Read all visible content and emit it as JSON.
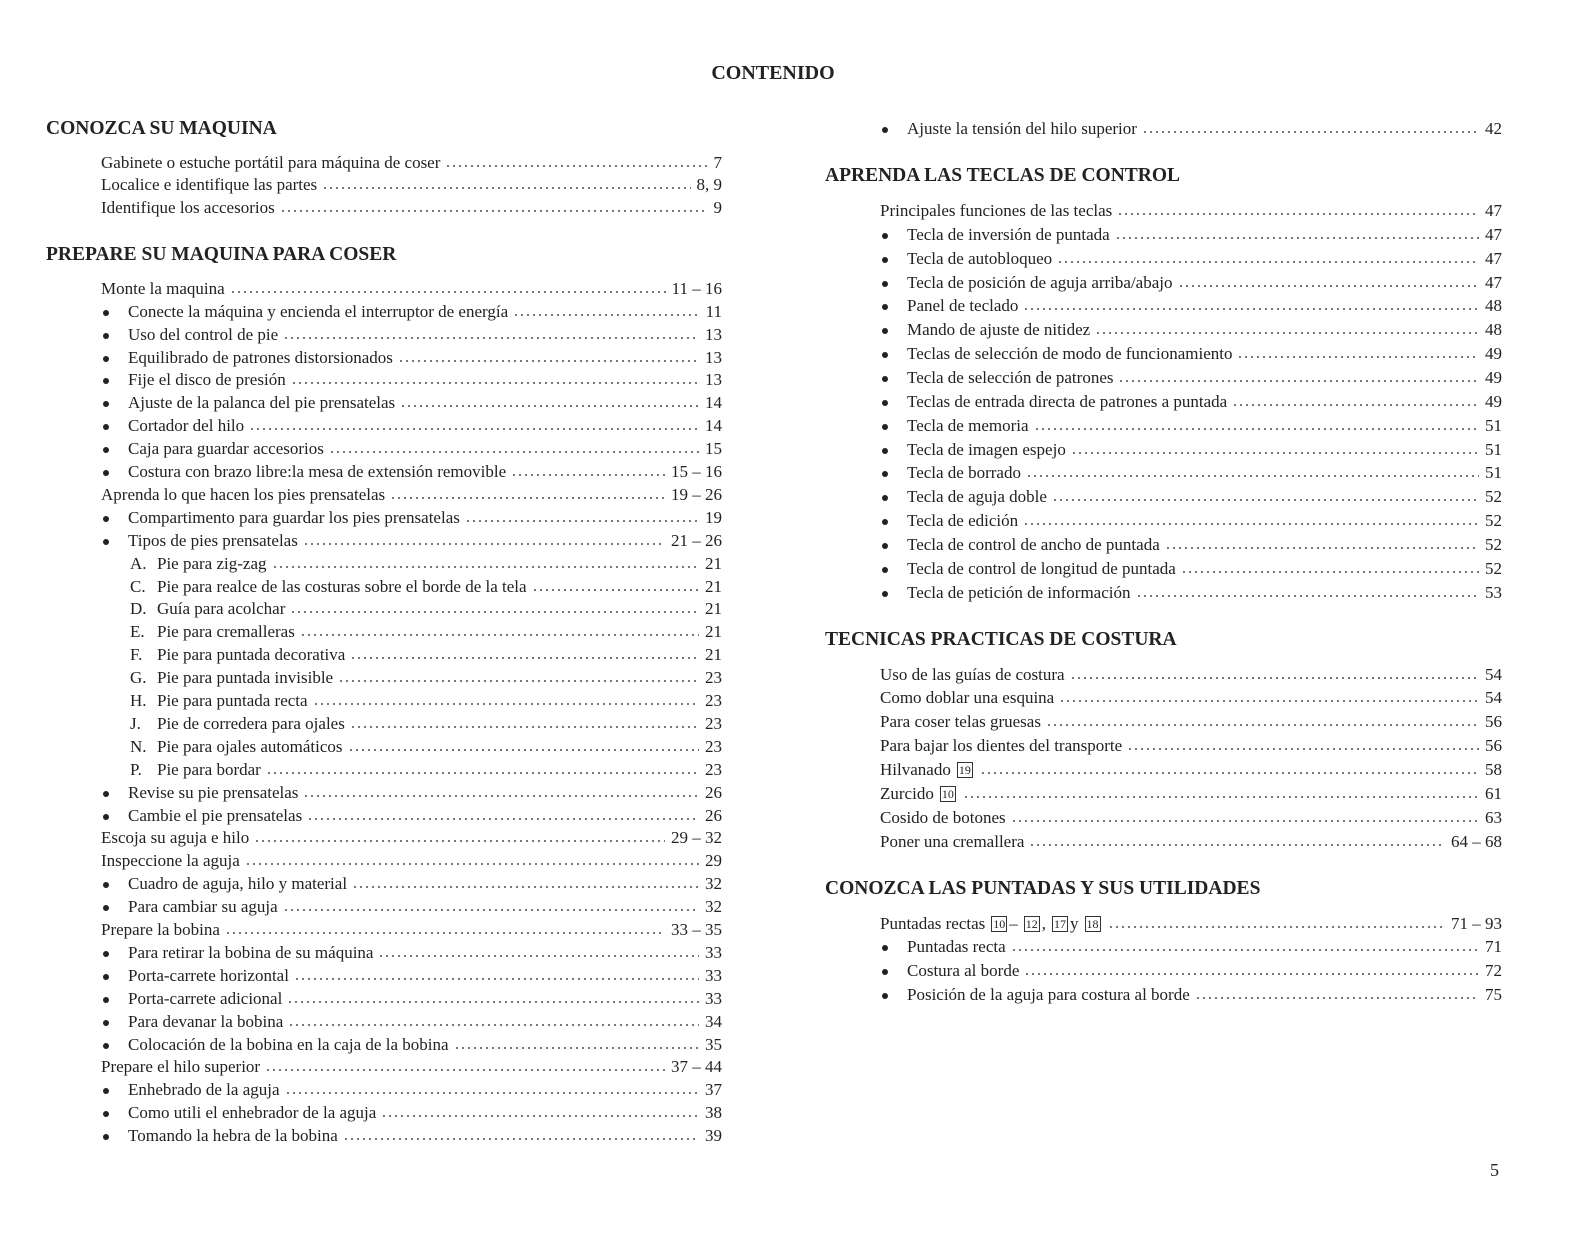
{
  "title": "CONTENIDO",
  "page_number": "5",
  "columns": [
    [
      {
        "heading": "CONOZCA SU MAQUINA",
        "entries": [
          {
            "text": [
              "Gabinete o estuche portátil para máquina de coser"
            ],
            "page": "7"
          },
          {
            "text": [
              "Localice e identifique las partes"
            ],
            "page": "8, 9"
          },
          {
            "text": [
              "Identifique los accesorios"
            ],
            "page": "9"
          }
        ]
      },
      {
        "heading": "PREPARE SU MAQUINA PARA COSER",
        "entries": [
          {
            "text": [
              "Monte la maquina"
            ],
            "page": "11 – 16"
          },
          {
            "bullet": true,
            "text": [
              "Conecte la máquina y encienda el interruptor de energía"
            ],
            "page": "11"
          },
          {
            "bullet": true,
            "text": [
              "Uso del control de pie"
            ],
            "page": "13"
          },
          {
            "bullet": true,
            "text": [
              "Equilibrado de patrones distorsionados"
            ],
            "page": "13"
          },
          {
            "bullet": true,
            "text": [
              "Fije el disco de presión"
            ],
            "page": "13"
          },
          {
            "bullet": true,
            "text": [
              "Ajuste de la palanca del pie prensatelas"
            ],
            "page": "14"
          },
          {
            "bullet": true,
            "text": [
              "Cortador del hilo"
            ],
            "page": "14"
          },
          {
            "bullet": true,
            "text": [
              "Caja para guardar accesorios"
            ],
            "page": "15"
          },
          {
            "bullet": true,
            "text": [
              "Costura con brazo libre:la mesa de extensión removible"
            ],
            "page": "15 – 16"
          },
          {
            "text": [
              "Aprenda lo que hacen los pies prensatelas"
            ],
            "page": "19 – 26"
          },
          {
            "bullet": true,
            "text": [
              "Compartimento para guardar los pies prensatelas"
            ],
            "page": "19"
          },
          {
            "bullet": true,
            "text": [
              "Tipos de pies prensatelas"
            ],
            "page": "21 – 26"
          },
          {
            "letter": "A.",
            "text": [
              "Pie para zig-zag"
            ],
            "page": "21"
          },
          {
            "letter": "C.",
            "text": [
              "Pie para realce de las costuras sobre el borde de la tela"
            ],
            "page": "21"
          },
          {
            "letter": "D.",
            "text": [
              "Guía para acolchar"
            ],
            "page": "21"
          },
          {
            "letter": "E.",
            "text": [
              "Pie para cremalleras"
            ],
            "page": "21"
          },
          {
            "letter": "F.",
            "text": [
              "Pie para puntada decorativa"
            ],
            "page": "21"
          },
          {
            "letter": "G.",
            "text": [
              "Pie para puntada invisible"
            ],
            "page": "23"
          },
          {
            "letter": "H.",
            "text": [
              "Pie para puntada recta"
            ],
            "page": "23"
          },
          {
            "letter": "J.",
            "text": [
              "Pie de corredera para ojales"
            ],
            "page": "23"
          },
          {
            "letter": "N.",
            "text": [
              "Pie para ojales automáticos"
            ],
            "page": "23"
          },
          {
            "letter": "P.",
            "text": [
              "Pie para bordar"
            ],
            "page": "23"
          },
          {
            "bullet": true,
            "text": [
              "Revise su pie prensatelas"
            ],
            "page": "26"
          },
          {
            "bullet": true,
            "text": [
              "Cambie el pie prensatelas"
            ],
            "page": "26"
          },
          {
            "text": [
              "Escoja su aguja e hilo"
            ],
            "page": "29 – 32"
          },
          {
            "text": [
              "Inspeccione la aguja"
            ],
            "page": "29"
          },
          {
            "bullet": true,
            "text": [
              "Cuadro de aguja, hilo y material"
            ],
            "page": "32"
          },
          {
            "bullet": true,
            "text": [
              "Para cambiar su aguja"
            ],
            "page": "32"
          },
          {
            "text": [
              "Prepare la bobina"
            ],
            "page": "33 – 35"
          },
          {
            "bullet": true,
            "text": [
              "Para retirar la bobina de su máquina"
            ],
            "page": "33"
          },
          {
            "bullet": true,
            "text": [
              "Porta-carrete horizontal"
            ],
            "page": "33"
          },
          {
            "bullet": true,
            "text": [
              "Porta-carrete adicional"
            ],
            "page": "33"
          },
          {
            "bullet": true,
            "text": [
              "Para devanar la bobina"
            ],
            "page": "34"
          },
          {
            "bullet": true,
            "text": [
              "Colocación de la bobina en la caja de la bobina"
            ],
            "page": "35"
          },
          {
            "text": [
              "Prepare el hilo superior"
            ],
            "page": "37 – 44"
          },
          {
            "bullet": true,
            "text": [
              "Enhebrado de la aguja"
            ],
            "page": "37"
          },
          {
            "bullet": true,
            "text": [
              "Como utili el enhebrador de la aguja"
            ],
            "page": "38"
          },
          {
            "bullet": true,
            "text": [
              "Tomando la hebra de la bobina"
            ],
            "page": "39"
          }
        ]
      }
    ],
    [
      {
        "entries": [
          {
            "bullet": true,
            "text": [
              "Ajuste la tensión del hilo superior"
            ],
            "page": "42"
          }
        ]
      },
      {
        "heading": "APRENDA LAS TECLAS DE CONTROL",
        "entries": [
          {
            "text": [
              "Principales funciones de las teclas"
            ],
            "page": "47"
          },
          {
            "bullet": true,
            "text": [
              "Tecla de inversión de puntada"
            ],
            "page": "47"
          },
          {
            "bullet": true,
            "text": [
              "Tecla de autobloqueo"
            ],
            "page": "47"
          },
          {
            "bullet": true,
            "text": [
              "Tecla de posición de aguja arriba/abajo"
            ],
            "page": "47"
          },
          {
            "bullet": true,
            "text": [
              "Panel de teclado"
            ],
            "page": "48"
          },
          {
            "bullet": true,
            "text": [
              "Mando de ajuste de nitidez"
            ],
            "page": "48"
          },
          {
            "bullet": true,
            "text": [
              "Teclas de selección de modo de funcionamiento"
            ],
            "page": "49"
          },
          {
            "bullet": true,
            "text": [
              "Tecla de selección de patrones"
            ],
            "page": "49"
          },
          {
            "bullet": true,
            "text": [
              "Teclas de entrada directa de patrones a puntada"
            ],
            "page": "49"
          },
          {
            "bullet": true,
            "text": [
              "Tecla de memoria"
            ],
            "page": "51"
          },
          {
            "bullet": true,
            "text": [
              "Tecla de imagen espejo"
            ],
            "page": "51"
          },
          {
            "bullet": true,
            "text": [
              "Tecla de borrado"
            ],
            "page": "51"
          },
          {
            "bullet": true,
            "text": [
              "Tecla de aguja doble"
            ],
            "page": "52"
          },
          {
            "bullet": true,
            "text": [
              "Tecla de edición"
            ],
            "page": "52"
          },
          {
            "bullet": true,
            "text": [
              "Tecla de control de ancho de puntada"
            ],
            "page": "52"
          },
          {
            "bullet": true,
            "text": [
              "Tecla de control de longitud de puntada"
            ],
            "page": "52"
          },
          {
            "bullet": true,
            "text": [
              "Tecla de petición de información"
            ],
            "page": "53"
          }
        ]
      },
      {
        "heading": "TECNICAS PRACTICAS DE COSTURA",
        "entries": [
          {
            "text": [
              "Uso de las guías de costura"
            ],
            "page": "54"
          },
          {
            "text": [
              "Como doblar una esquina"
            ],
            "page": "54"
          },
          {
            "text": [
              "Para coser telas gruesas"
            ],
            "page": "56"
          },
          {
            "text": [
              "Para bajar los dientes del transporte"
            ],
            "page": "56"
          },
          {
            "text": [
              "Hilvanado",
              {
                "boxed": "19"
              }
            ],
            "page": "58"
          },
          {
            "text": [
              "Zurcido",
              {
                "boxed": "10"
              }
            ],
            "page": "61"
          },
          {
            "text": [
              "Cosido de botones"
            ],
            "page": "63"
          },
          {
            "text": [
              "Poner una cremallera"
            ],
            "page": "64 – 68"
          }
        ]
      },
      {
        "heading": "CONOZCA LAS PUNTADAS Y SUS UTILIDADES",
        "entries": [
          {
            "text": [
              "Puntadas rectas",
              {
                "boxed": "10"
              },
              "–",
              {
                "boxed": "12"
              },
              ",",
              {
                "boxed": "17"
              },
              "y",
              {
                "boxed": "18"
              }
            ],
            "page": "71 – 93"
          },
          {
            "bullet": true,
            "text": [
              "Puntadas recta"
            ],
            "page": "71"
          },
          {
            "bullet": true,
            "text": [
              "Costura al borde"
            ],
            "page": "72"
          },
          {
            "bullet": true,
            "text": [
              "Posición de la aguja para costura al borde"
            ],
            "page": "75"
          }
        ]
      }
    ]
  ]
}
